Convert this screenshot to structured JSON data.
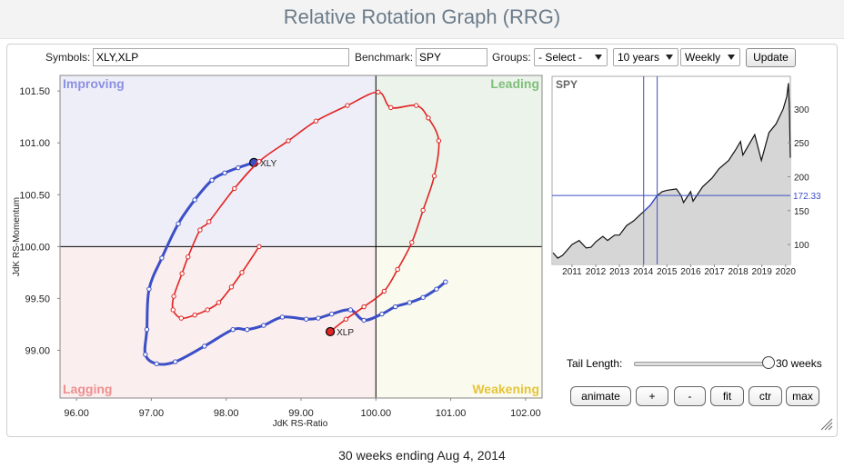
{
  "header": {
    "title": "Relative Rotation Graph (RRG)"
  },
  "controls": {
    "symbols_label": "Symbols:",
    "symbols": "XLY,XLP",
    "benchmark_label": "Benchmark:",
    "benchmark": "SPY",
    "groups_label": "Groups:",
    "groups": "- Select -",
    "period": "10 years",
    "frequency": "Weekly",
    "update": "Update",
    "tail_label": "Tail Length:",
    "tail_value": "30 weeks",
    "buttons": [
      "animate",
      "+",
      "-",
      "fit",
      "ctr",
      "max"
    ]
  },
  "chart_data": [
    {
      "type": "rrg",
      "x_label": "JdK RS-Ratio",
      "y_label": "JdK RS-Momentum",
      "xlim": [
        95.78,
        102.22
      ],
      "ylim": [
        98.54,
        101.65
      ],
      "xticks": [
        {
          "value": 96,
          "label": "96.00"
        },
        {
          "value": 97,
          "label": "97.00"
        },
        {
          "value": 98,
          "label": "98.00"
        },
        {
          "value": 99,
          "label": "99.00"
        },
        {
          "value": 100,
          "label": "100.00"
        },
        {
          "value": 101,
          "label": "101.00"
        },
        {
          "value": 102,
          "label": "102.00"
        }
      ],
      "yticks": [
        {
          "value": 99,
          "label": "99.00"
        },
        {
          "value": 99.5,
          "label": "99.50"
        },
        {
          "value": 100,
          "label": "100.00"
        },
        {
          "value": 100.5,
          "label": "100.50"
        },
        {
          "value": 101,
          "label": "101.00"
        },
        {
          "value": 101.5,
          "label": "101.50"
        }
      ],
      "center": [
        100,
        100
      ],
      "quadrants": [
        {
          "name": "Improving",
          "position": "top-left",
          "background": "#eeeef8",
          "color": "#8b90e2"
        },
        {
          "name": "Leading",
          "position": "top-right",
          "background": "#ebf3ea",
          "color": "#7fbf7a"
        },
        {
          "name": "Lagging",
          "position": "bottom-left",
          "background": "#fbeeee",
          "color": "#ee8f8f"
        },
        {
          "name": "Weakening",
          "position": "bottom-right",
          "background": "#fafaee",
          "color": "#e5c43a"
        }
      ],
      "series": [
        {
          "name": "XLY",
          "color": "#3b4fc6",
          "line_width": 3,
          "x": [
            100.93,
            100.81,
            100.63,
            100.45,
            100.26,
            100.08,
            99.84,
            99.66,
            99.41,
            99.23,
            99.07,
            98.75,
            98.5,
            98.28,
            98.09,
            97.71,
            97.32,
            97.07,
            96.92,
            96.94,
            96.97,
            97.14,
            97.36,
            97.58,
            97.81,
            97.98,
            98.16,
            98.37
          ],
          "values": [
            99.66,
            99.59,
            99.51,
            99.46,
            99.42,
            99.35,
            99.29,
            99.39,
            99.35,
            99.31,
            99.3,
            99.32,
            99.24,
            99.2,
            99.2,
            99.04,
            98.89,
            98.87,
            98.96,
            99.2,
            99.59,
            99.89,
            100.22,
            100.45,
            100.64,
            100.71,
            100.76,
            100.81
          ]
        },
        {
          "name": "XLP",
          "color": "#e02424",
          "line_width": 1.6,
          "x": [
            98.44,
            98.21,
            98.07,
            97.9,
            97.75,
            97.58,
            97.4,
            97.29,
            97.3,
            97.41,
            97.49,
            97.65,
            97.77,
            98.11,
            98.44,
            98.83,
            99.2,
            99.62,
            100.03,
            100.2,
            100.54,
            100.7,
            100.84,
            100.78,
            100.63,
            100.48,
            100.29,
            100.11,
            99.84,
            99.6,
            99.39
          ],
          "values": [
            100.0,
            99.75,
            99.61,
            99.46,
            99.39,
            99.34,
            99.31,
            99.39,
            99.52,
            99.74,
            99.9,
            100.16,
            100.24,
            100.56,
            100.82,
            101.02,
            101.21,
            101.36,
            101.49,
            101.34,
            101.36,
            101.24,
            101.02,
            100.68,
            100.35,
            100.04,
            99.78,
            99.57,
            99.42,
            99.3,
            99.18
          ]
        }
      ]
    },
    {
      "type": "line",
      "title": "SPY",
      "color": "#111111",
      "fill": "#d6d6d6",
      "x": [
        2010.2,
        2010.4,
        2010.6,
        2010.8,
        2011.0,
        2011.3,
        2011.6,
        2011.8,
        2012.0,
        2012.3,
        2012.5,
        2012.8,
        2013.0,
        2013.3,
        2013.6,
        2013.9,
        2014.0,
        2014.3,
        2014.59,
        2014.8,
        2015.0,
        2015.4,
        2015.6,
        2015.7,
        2016.0,
        2016.1,
        2016.5,
        2016.9,
        2017.2,
        2017.6,
        2017.9,
        2018.1,
        2018.2,
        2018.7,
        2018.98,
        2019.3,
        2019.6,
        2019.9,
        2020.05,
        2020.12,
        2020.16,
        2020.2
      ],
      "values": [
        88,
        80,
        84,
        92,
        100,
        106,
        95,
        96,
        104,
        112,
        106,
        114,
        114,
        128,
        135,
        145,
        148,
        158,
        172.33,
        178,
        180,
        182,
        172,
        162,
        178,
        164,
        185,
        198,
        212,
        224,
        240,
        252,
        232,
        262,
        224,
        265,
        278,
        300,
        318,
        338,
        300,
        228
      ],
      "xlim": [
        2010.16,
        2020.2
      ],
      "ylim": [
        70.7,
        348
      ],
      "xticks": [
        2011,
        2012,
        2013,
        2014,
        2015,
        2016,
        2017,
        2018,
        2019,
        2020
      ],
      "yticks": [
        100,
        150,
        200,
        250,
        300
      ],
      "window": [
        2014.02,
        2014.59
      ],
      "window_color": "#3b4fc6",
      "last": 172.33
    }
  ],
  "footer": {
    "text": "30 weeks ending Aug 4, 2014"
  }
}
